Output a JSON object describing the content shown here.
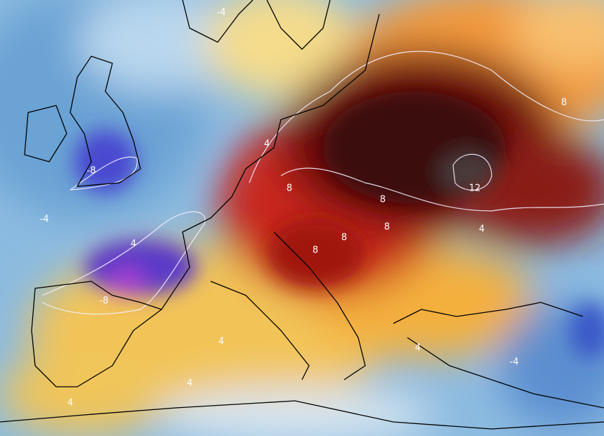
{
  "map": {
    "contour_labels": [
      -4,
      -8,
      -4,
      4,
      -8,
      4,
      8,
      8,
      8,
      12,
      8,
      4,
      4,
      4,
      4,
      4,
      -4,
      8,
      8
    ]
  }
}
